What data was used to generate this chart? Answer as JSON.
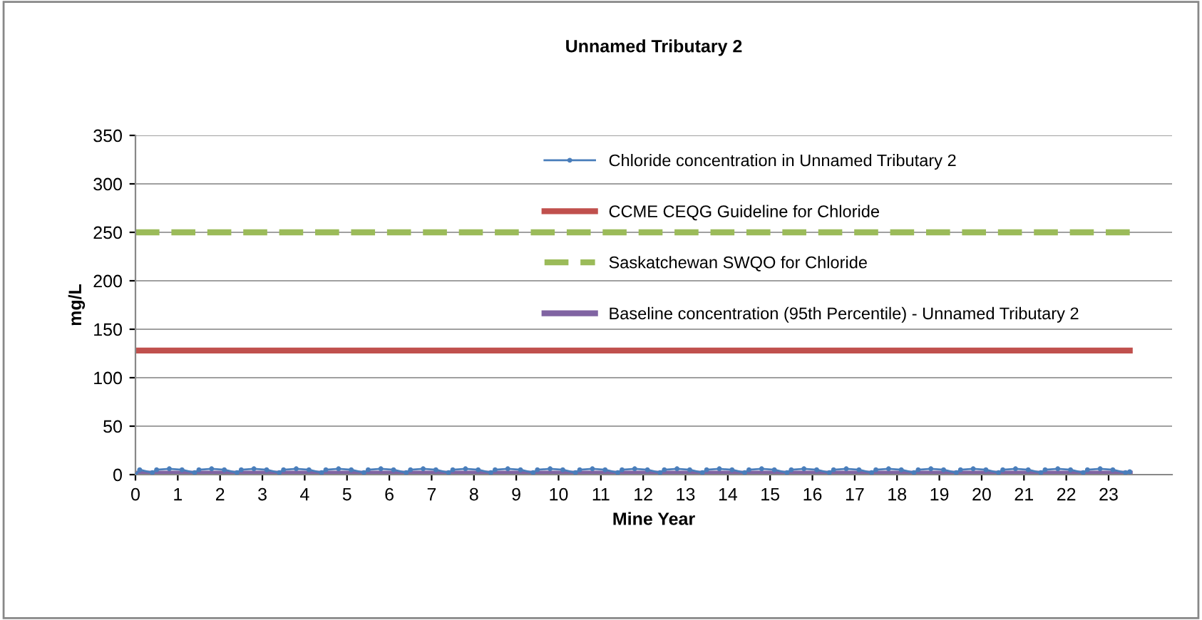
{
  "chart_data": {
    "type": "line",
    "title": "Unnamed Tributary 2",
    "xlabel": "Mine Year",
    "ylabel": "mg/L",
    "xlim": [
      0,
      24.5
    ],
    "xticks": [
      0,
      1,
      2,
      3,
      4,
      5,
      6,
      7,
      8,
      9,
      10,
      11,
      12,
      13,
      14,
      15,
      16,
      17,
      18,
      19,
      20,
      21,
      22,
      23
    ],
    "ylim": [
      0,
      350
    ],
    "yticks": [
      0,
      50,
      100,
      150,
      200,
      250,
      300,
      350
    ],
    "grid": "y",
    "legend": "top",
    "series": [
      {
        "name": "Chloride concentration in Unnamed Tributary 2",
        "color": "#4a7ebb",
        "marker": "circle",
        "line_style": "solid",
        "x": [
          0,
          0.1,
          0.4,
          0.5,
          0.8,
          1.1,
          1.4,
          1.5,
          1.8,
          2.1,
          2.4,
          2.5,
          2.8,
          3.1,
          3.4,
          3.5,
          3.8,
          4.1,
          4.4,
          4.5,
          4.8,
          5.1,
          5.4,
          5.5,
          5.8,
          6.1,
          6.4,
          6.5,
          6.8,
          7.1,
          7.4,
          7.5,
          7.8,
          8.1,
          8.4,
          8.5,
          8.8,
          9.1,
          9.4,
          9.5,
          9.8,
          10.1,
          10.4,
          10.5,
          10.8,
          11.1,
          11.4,
          11.5,
          11.8,
          12.1,
          12.4,
          12.5,
          12.8,
          13.1,
          13.4,
          13.5,
          13.8,
          14.1,
          14.4,
          14.5,
          14.8,
          15.1,
          15.4,
          15.5,
          15.8,
          16.1,
          16.4,
          16.5,
          16.8,
          17.1,
          17.4,
          17.5,
          17.8,
          18.1,
          18.4,
          18.5,
          18.8,
          19.1,
          19.4,
          19.5,
          19.8,
          20.1,
          20.4,
          20.5,
          20.8,
          21.1,
          21.4,
          21.5,
          21.8,
          22.1,
          22.4,
          22.5,
          22.8,
          23.1,
          23.4,
          23.5
        ],
        "values": [
          0,
          5,
          2,
          5,
          6,
          5,
          2,
          5,
          6,
          5,
          2,
          5,
          6,
          5,
          2,
          5,
          6,
          5,
          2,
          5,
          6,
          5,
          2,
          5,
          6,
          5,
          2,
          5,
          6,
          5,
          2,
          5,
          6,
          5,
          2,
          5,
          6,
          5,
          2,
          5,
          6,
          5,
          2,
          5,
          6,
          5,
          2,
          5,
          6,
          5,
          2,
          5,
          6,
          5,
          2,
          5,
          6,
          5,
          2,
          5,
          6,
          5,
          2,
          5,
          6,
          5,
          2,
          5,
          6,
          5,
          2,
          5,
          6,
          5,
          2,
          5,
          6,
          5,
          2,
          5,
          6,
          5,
          2,
          5,
          6,
          5,
          2,
          5,
          6,
          5,
          2,
          5,
          6,
          5,
          2,
          3
        ]
      },
      {
        "name": "CCME CEQG Guideline for Chloride",
        "color": "#c0504d",
        "marker": "none",
        "line_style": "solid",
        "x": [
          0,
          23.5
        ],
        "values": [
          128,
          128
        ]
      },
      {
        "name": "Saskatchewan SWQO for Chloride",
        "color": "#9bbb59",
        "marker": "none",
        "line_style": "dashed",
        "x": [
          0,
          23.5
        ],
        "values": [
          250,
          250
        ]
      },
      {
        "name": "Baseline concentration (95th Percentile) - Unnamed Tributary 2",
        "color": "#8064a2",
        "marker": "none",
        "line_style": "solid",
        "x": [
          0,
          23.5
        ],
        "values": [
          1,
          1
        ]
      }
    ]
  }
}
